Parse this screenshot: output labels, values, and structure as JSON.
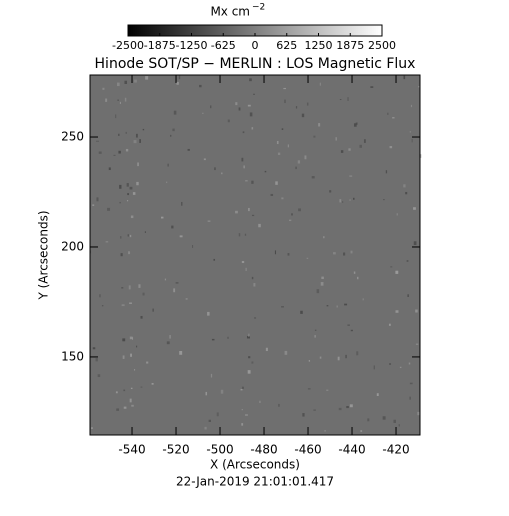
{
  "chart_data": {
    "type": "image",
    "title": "Hinode SOT/SP − MERLIN : LOS Magnetic Flux",
    "xlabel": "X (Arcseconds)",
    "ylabel": "Y (Arcseconds)",
    "date": "22-Jan-2019 21:01:01.417",
    "xlim": [
      -559.1,
      -409.1
    ],
    "xticks": [
      -540,
      -520,
      -500,
      -480,
      -460,
      -440,
      -420
    ],
    "ylim": [
      114.5,
      278.2
    ],
    "yticks": [
      150,
      200,
      250
    ],
    "colorbar_label": "Mx cm",
    "colorbar_label_exponent": "−2",
    "clim": [
      -2500,
      2500
    ],
    "cticks": [
      -2500,
      -1875,
      -1250,
      -625,
      0,
      625,
      1250,
      1875,
      2500
    ],
    "colormap": [
      "#000000",
      "#ffffff"
    ],
    "background": "#6f6f6f"
  }
}
